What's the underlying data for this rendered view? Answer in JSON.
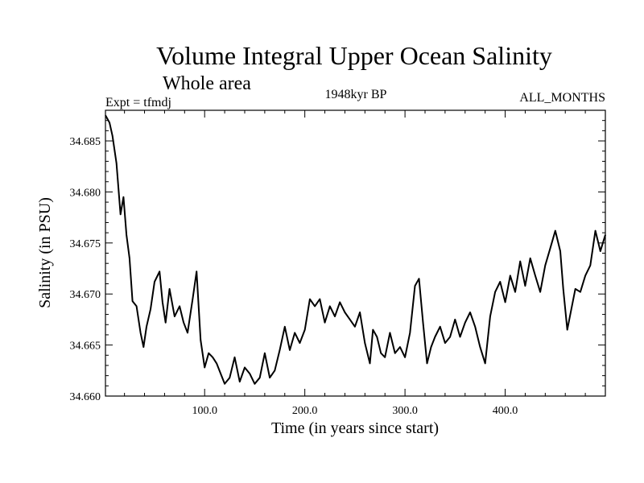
{
  "chart_data": {
    "type": "line",
    "title": "Volume Integral Upper Ocean Salinity",
    "subtitle": "Whole area",
    "experiment_label": "Expt = tfmdj",
    "period_label": "1948kyr BP",
    "months_label": "ALL_MONTHS",
    "xlabel": "Time (in years since start)",
    "ylabel": "Salinity (in PSU)",
    "xlim": [
      1,
      500
    ],
    "ylim": [
      34.66,
      34.688
    ],
    "x_ticks": [
      100,
      200,
      300,
      400
    ],
    "x_tick_labels": [
      "100.0",
      "200.0",
      "300.0",
      "400.0"
    ],
    "y_ticks": [
      34.66,
      34.665,
      34.67,
      34.675,
      34.68,
      34.685
    ],
    "y_tick_labels": [
      "34.660",
      "34.665",
      "34.670",
      "34.675",
      "34.680",
      "34.685"
    ],
    "grid": false,
    "series": [
      {
        "name": "salinity",
        "x": [
          1,
          5,
          8,
          12,
          16,
          19,
          22,
          25,
          28,
          32,
          36,
          39,
          42,
          46,
          50,
          55,
          58,
          61,
          65,
          70,
          75,
          79,
          83,
          88,
          92,
          96,
          100,
          104,
          108,
          112,
          116,
          120,
          125,
          130,
          135,
          140,
          145,
          150,
          155,
          160,
          165,
          170,
          175,
          180,
          185,
          190,
          195,
          200,
          205,
          210,
          215,
          220,
          225,
          230,
          235,
          240,
          245,
          250,
          255,
          260,
          265,
          268,
          272,
          276,
          280,
          285,
          290,
          295,
          300,
          305,
          310,
          314,
          318,
          322,
          326,
          330,
          335,
          340,
          345,
          350,
          355,
          360,
          365,
          370,
          375,
          380,
          385,
          390,
          395,
          400,
          405,
          410,
          415,
          420,
          425,
          430,
          435,
          440,
          445,
          450,
          455,
          458,
          462,
          466,
          470,
          475,
          480,
          485,
          490,
          495,
          500
        ],
        "values": [
          34.6875,
          34.6868,
          34.6855,
          34.6828,
          34.6778,
          34.6795,
          34.6758,
          34.6735,
          34.6693,
          34.6688,
          34.6662,
          34.6648,
          34.6668,
          34.6685,
          34.6712,
          34.6722,
          34.6692,
          34.6672,
          34.6705,
          34.6678,
          34.6688,
          34.6672,
          34.6662,
          34.6695,
          34.6722,
          34.6655,
          34.6628,
          34.6642,
          34.6638,
          34.6632,
          34.6622,
          34.6612,
          34.6618,
          34.6638,
          34.6614,
          34.6628,
          34.6622,
          34.6612,
          34.6618,
          34.6642,
          34.6618,
          34.6625,
          34.6645,
          34.6668,
          34.6645,
          34.6662,
          34.6652,
          34.6665,
          34.6695,
          34.6688,
          34.6695,
          34.6672,
          34.6688,
          34.6678,
          34.6692,
          34.6682,
          34.6675,
          34.6668,
          34.6682,
          34.6652,
          34.6632,
          34.6665,
          34.6658,
          34.6642,
          34.6638,
          34.6662,
          34.6642,
          34.6648,
          34.6638,
          34.6662,
          34.6708,
          34.6715,
          34.6672,
          34.6632,
          34.6648,
          34.6658,
          34.6668,
          34.6652,
          34.6658,
          34.6675,
          34.6658,
          34.6672,
          34.6682,
          34.6668,
          34.6648,
          34.6632,
          34.6678,
          34.6702,
          34.6712,
          34.6692,
          34.6718,
          34.6702,
          34.6732,
          34.6708,
          34.6735,
          34.6718,
          34.6702,
          34.6728,
          34.6745,
          34.6762,
          34.6742,
          34.6705,
          34.6665,
          34.6685,
          34.6705,
          34.6702,
          34.6718,
          34.6728,
          34.6762,
          34.6742,
          34.6758
        ]
      }
    ]
  }
}
